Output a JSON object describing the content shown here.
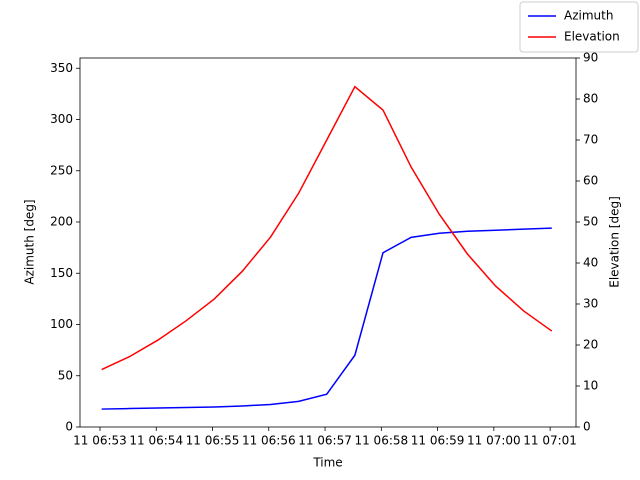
{
  "chart_data": {
    "type": "line",
    "x_label": "Time",
    "y_label": "Azimuth [deg]",
    "y2_label": "Elevation [deg]",
    "x": [
      413.03,
      413.53,
      414.03,
      414.53,
      415.03,
      415.53,
      416.03,
      416.53,
      417.03,
      417.53,
      418.03,
      418.53,
      419.03,
      419.53,
      420.03,
      420.53,
      421.03
    ],
    "series": [
      {
        "name": "Azimuth",
        "color": "#0000ff",
        "axis": "y",
        "values": [
          17.5,
          18,
          18.5,
          19,
          19.5,
          20.5,
          22,
          25,
          32,
          70,
          170,
          185,
          189,
          191,
          192,
          193,
          194
        ]
      },
      {
        "name": "Elevation",
        "color": "#ff0000",
        "axis": "y2",
        "values": [
          14,
          17.2,
          21.2,
          25.9,
          31.2,
          38,
          46.3,
          57,
          70,
          83,
          77.3,
          63.4,
          51.9,
          42.2,
          34.4,
          28.3,
          23.4
        ]
      }
    ],
    "xlim": [
      412.645,
      421.46
    ],
    "xticks": [
      {
        "value": 413,
        "label": "11 06:53"
      },
      {
        "value": 414,
        "label": "11 06:54"
      },
      {
        "value": 415,
        "label": "11 06:55"
      },
      {
        "value": 416,
        "label": "11 06:56"
      },
      {
        "value": 417,
        "label": "11 06:57"
      },
      {
        "value": 418,
        "label": "11 06:58"
      },
      {
        "value": 419,
        "label": "11 06:59"
      },
      {
        "value": 420,
        "label": "11 07:00"
      },
      {
        "value": 421,
        "label": "11 07:01"
      }
    ],
    "ylim": [
      0,
      360
    ],
    "yticks": [
      0,
      50,
      100,
      150,
      200,
      250,
      300,
      350
    ],
    "y2lim": [
      0,
      90
    ],
    "y2ticks": [
      0,
      10,
      20,
      30,
      40,
      50,
      60,
      70,
      80,
      90
    ],
    "legend": "upper right"
  }
}
